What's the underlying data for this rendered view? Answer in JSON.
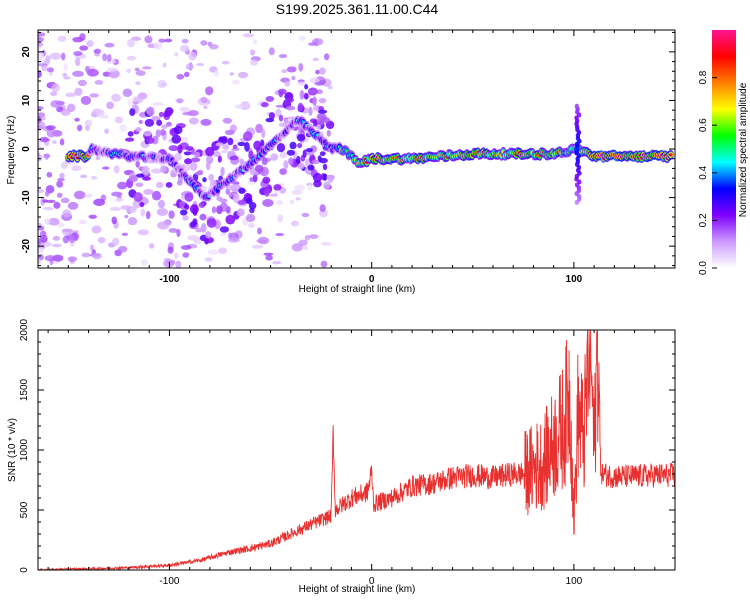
{
  "page_title": "S199.2025.361.11.00.C44",
  "chart_data": [
    {
      "type": "heatmap",
      "title": "S199.2025.361.11.00.C44",
      "xlabel": "Height of straight line (km)",
      "ylabel": "Frequency (Hz)",
      "xlim": [
        -165,
        150
      ],
      "ylim": [
        -24.5,
        24.5
      ],
      "x_ticks": [
        -100,
        0,
        100
      ],
      "x_tick_labels": [
        "-100",
        "0",
        "100"
      ],
      "y_ticks": [
        -20,
        -10,
        0,
        10,
        20
      ],
      "y_tick_labels": [
        "-20",
        "-10",
        "0",
        "10",
        "20"
      ],
      "colorbar": {
        "label": "Normalized spectral amplitude",
        "range": [
          0,
          1
        ],
        "ticks": [
          0.0,
          0.2,
          0.4,
          0.6,
          0.8
        ],
        "tick_labels": [
          "0.0",
          "0.2",
          "0.4",
          "0.6",
          "0.8"
        ],
        "colors": [
          "#ffffff",
          "#cc99ff",
          "#7f00ff",
          "#0000ff",
          "#00ffff",
          "#00ff00",
          "#ffff00",
          "#ff7f00",
          "#ff0000",
          "#ff1493"
        ]
      },
      "ridge": [
        {
          "x": -140,
          "freq": 0.0,
          "amp": 0.3
        },
        {
          "x": -120,
          "freq": -1.5,
          "amp": 0.35
        },
        {
          "x": -100,
          "freq": -2.0,
          "amp": 0.25
        },
        {
          "x": -82,
          "freq": -10.0,
          "amp": 0.3
        },
        {
          "x": -60,
          "freq": -3.0,
          "amp": 0.3
        },
        {
          "x": -36,
          "freq": 6.0,
          "amp": 0.3
        },
        {
          "x": -20,
          "freq": 0.0,
          "amp": 0.4
        },
        {
          "x": -16,
          "freq": 0.5,
          "amp": 0.5
        },
        {
          "x": -6,
          "freq": -3.0,
          "amp": 0.7
        },
        {
          "x": 0,
          "freq": -2.0,
          "amp": 0.8
        },
        {
          "x": 20,
          "freq": -2.0,
          "amp": 0.75
        },
        {
          "x": 50,
          "freq": -1.0,
          "amp": 0.8
        },
        {
          "x": 90,
          "freq": -1.0,
          "amp": 0.7
        },
        {
          "x": 102,
          "freq": 0.0,
          "amp": 0.5
        },
        {
          "x": 110,
          "freq": -1.5,
          "amp": 0.95
        },
        {
          "x": 148,
          "freq": -1.5,
          "amp": 0.9
        }
      ]
    },
    {
      "type": "line",
      "xlabel": "Height of straight line (km)",
      "ylabel": "SNR (10 * v/v)",
      "xlim": [
        -165,
        150
      ],
      "ylim": [
        0,
        2000
      ],
      "x_ticks": [
        -100,
        0,
        100
      ],
      "x_tick_labels": [
        "-100",
        "0",
        "100"
      ],
      "y_ticks": [
        0,
        500,
        1000,
        1500,
        2000
      ],
      "y_tick_labels": [
        "0",
        "500",
        "1000",
        "1500",
        "2000"
      ],
      "series": [
        {
          "name": "SNR",
          "color": "#e8302f",
          "x": [
            -165,
            -140,
            -120,
            -100,
            -85,
            -70,
            -60,
            -50,
            -40,
            -30,
            -20,
            -19,
            -18,
            -10,
            -2,
            0,
            1,
            10,
            20,
            30,
            40,
            50,
            60,
            70,
            75,
            80,
            85,
            90,
            95,
            98,
            100,
            102,
            105,
            108,
            110,
            112,
            113,
            114,
            120,
            130,
            140,
            150
          ],
          "values": [
            0,
            10,
            20,
            40,
            80,
            150,
            180,
            220,
            300,
            380,
            450,
            1150,
            500,
            600,
            650,
            820,
            550,
            600,
            700,
            720,
            770,
            790,
            770,
            800,
            800,
            850,
            900,
            1050,
            1200,
            1500,
            400,
            1300,
            1100,
            1950,
            1000,
            2000,
            900,
            800,
            780,
            780,
            790,
            790
          ]
        }
      ]
    }
  ]
}
